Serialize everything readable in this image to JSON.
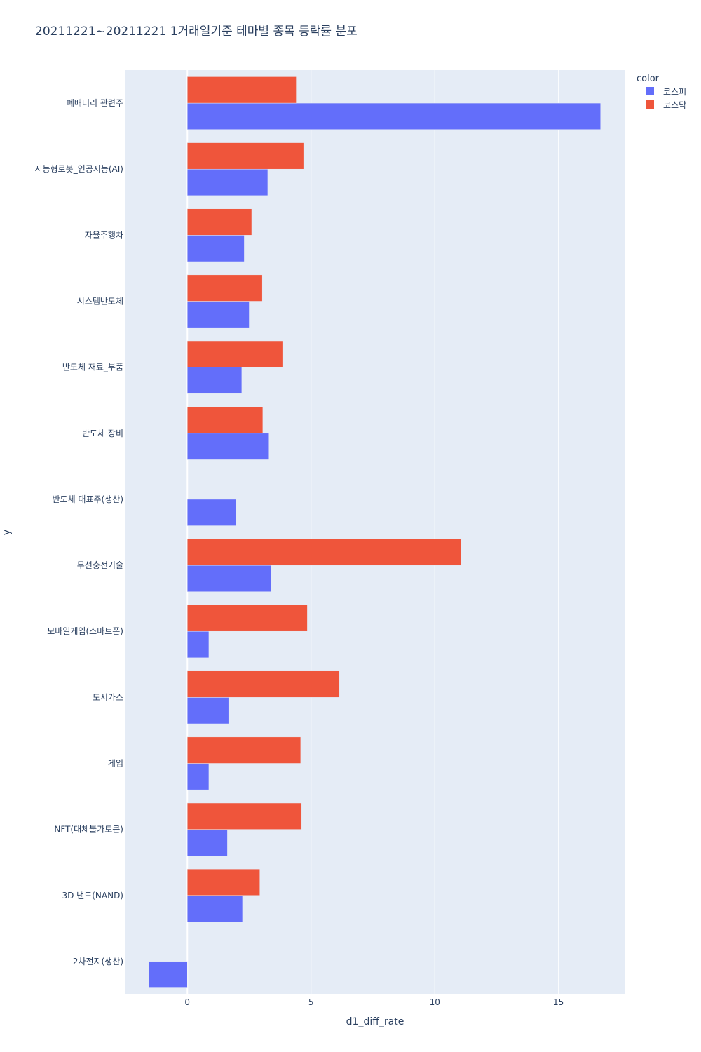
{
  "chart_data": {
    "type": "bar",
    "orientation": "horizontal",
    "barmode": "group",
    "title": "20211221~20211221 1거래일기준 테마별 종목 등락률 분포",
    "xlabel": "d1_diff_rate",
    "ylabel": "y",
    "xlim": [
      -2.5,
      17.7
    ],
    "xticks": [
      0,
      5,
      10,
      15
    ],
    "grid": true,
    "legend": {
      "title": "color",
      "placement": "top-right"
    },
    "categories": [
      "폐배터리 관련주",
      "지능형로봇_인공지능(AI)",
      "자율주행차",
      "시스템반도체",
      "반도체 재료_부품",
      "반도체 장비",
      "반도체 대표주(생산)",
      "무선충전기술",
      "모바일게임(스마트폰)",
      "도시가스",
      "게임",
      "NFT(대체불가토큰)",
      "3D 낸드(NAND)",
      "2차전지(생산)"
    ],
    "series": [
      {
        "name": "코스피",
        "color": "#636efa",
        "values": [
          16.7,
          3.25,
          2.3,
          2.5,
          2.2,
          3.3,
          1.97,
          3.4,
          0.87,
          1.67,
          0.87,
          1.62,
          2.23,
          -1.55
        ]
      },
      {
        "name": "코스닥",
        "color": "#ef553b",
        "values": [
          4.4,
          4.7,
          2.6,
          3.03,
          3.85,
          3.05,
          null,
          11.05,
          4.85,
          6.15,
          4.58,
          4.62,
          2.93,
          null
        ]
      }
    ]
  }
}
